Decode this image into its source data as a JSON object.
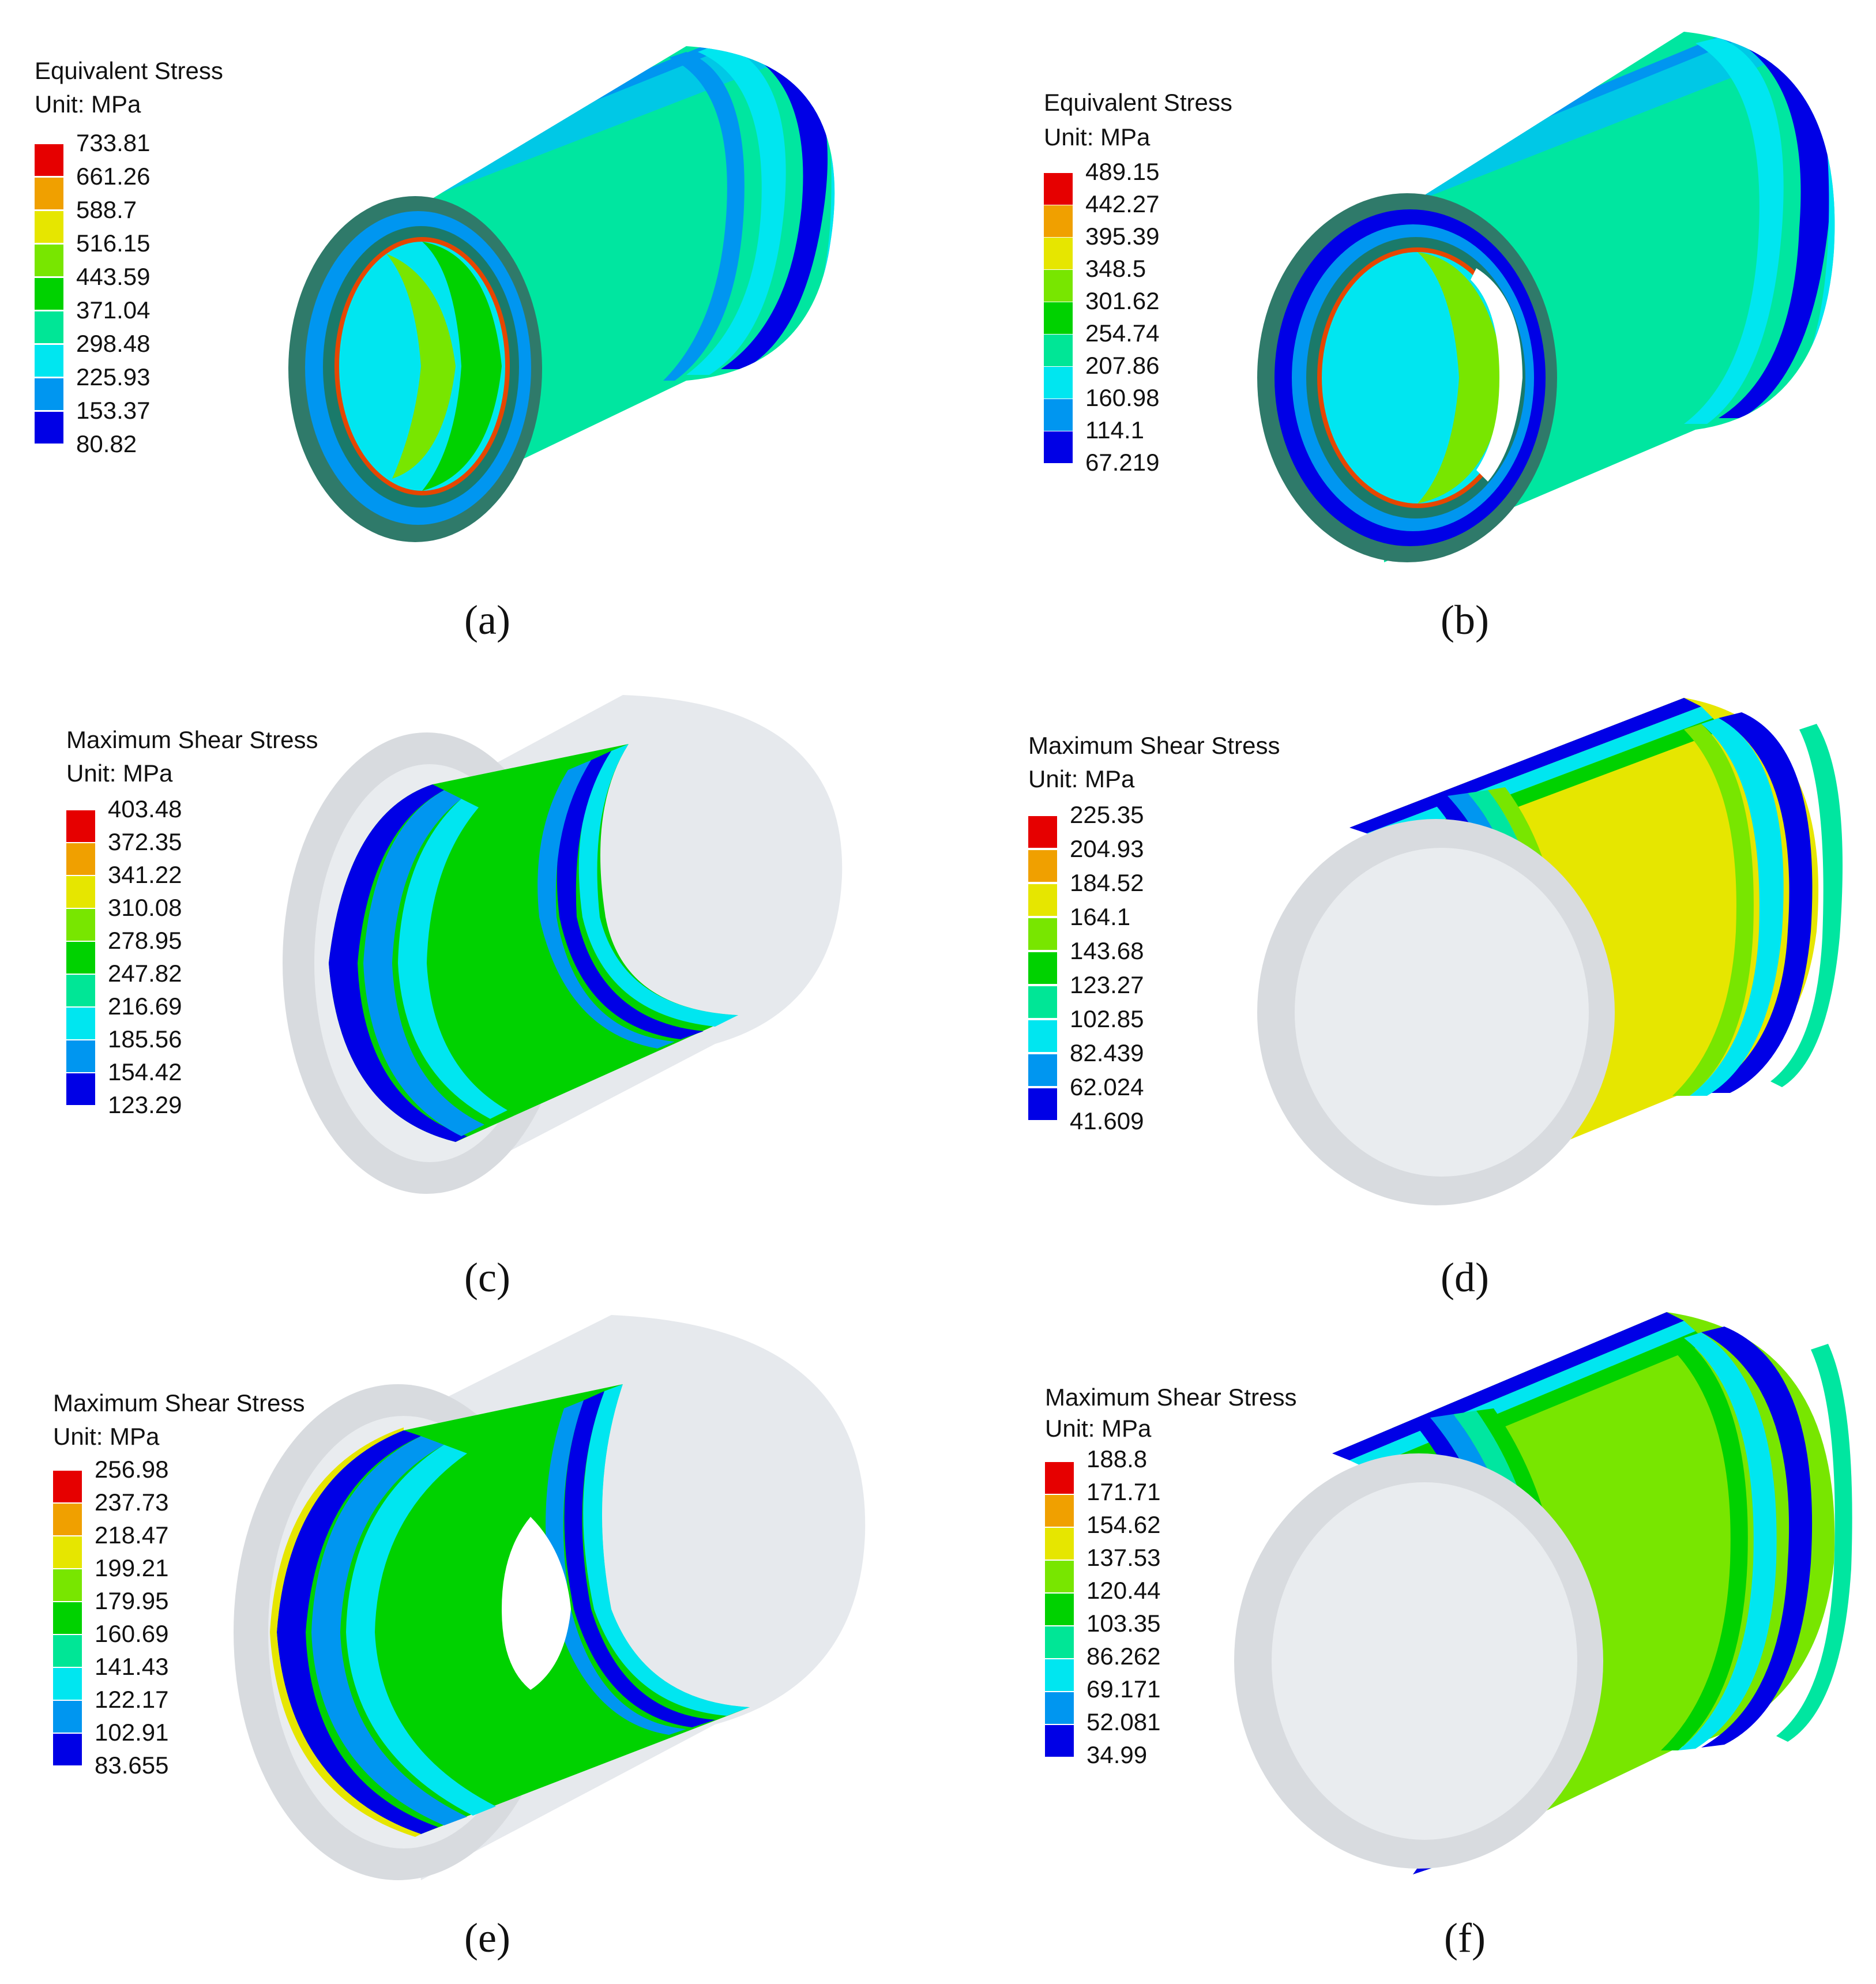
{
  "colors": {
    "bands": [
      "#0000e6",
      "#0096f0",
      "#00e6f0",
      "#00e696",
      "#00d200",
      "#78e600",
      "#e6e600",
      "#f0a000",
      "#e60000"
    ],
    "ghost": "#d8dbdf",
    "ghost_inner": "#e9ecef"
  },
  "panels": [
    {
      "caption": "(a)",
      "legend": {
        "title": "Equivalent Stress",
        "unit": "Unit: MPa",
        "ticks": [
          "733.81",
          "661.26",
          "588.7",
          "516.15",
          "443.59",
          "371.04",
          "298.48",
          "225.93",
          "153.37",
          "80.82"
        ]
      }
    },
    {
      "caption": "(b)",
      "legend": {
        "title": "Equivalent Stress",
        "unit": "Unit: MPa",
        "ticks": [
          "489.15",
          "442.27",
          "395.39",
          "348.5",
          "301.62",
          "254.74",
          "207.86",
          "160.98",
          "114.1",
          "67.219"
        ]
      }
    },
    {
      "caption": "(c)",
      "legend": {
        "title": "Maximum Shear Stress",
        "unit": "Unit: MPa",
        "ticks": [
          "403.48",
          "372.35",
          "341.22",
          "310.08",
          "278.95",
          "247.82",
          "216.69",
          "185.56",
          "154.42",
          "123.29"
        ]
      }
    },
    {
      "caption": "(d)",
      "legend": {
        "title": "Maximum Shear Stress",
        "unit": "Unit: MPa",
        "ticks": [
          "225.35",
          "204.93",
          "184.52",
          "164.1",
          "143.68",
          "123.27",
          "102.85",
          "82.439",
          "62.024",
          "41.609"
        ]
      }
    },
    {
      "caption": "(e)",
      "legend": {
        "title": "Maximum Shear Stress",
        "unit": "Unit: MPa",
        "ticks": [
          "256.98",
          "237.73",
          "218.47",
          "199.21",
          "179.95",
          "160.69",
          "141.43",
          "122.17",
          "102.91",
          "83.655"
        ]
      }
    },
    {
      "caption": "(f)",
      "legend": {
        "title": "Maximum Shear Stress",
        "unit": "Unit: MPa",
        "ticks": [
          "188.8",
          "171.71",
          "154.62",
          "137.53",
          "120.44",
          "103.35",
          "86.262",
          "69.171",
          "52.081",
          "34.99"
        ]
      }
    }
  ]
}
